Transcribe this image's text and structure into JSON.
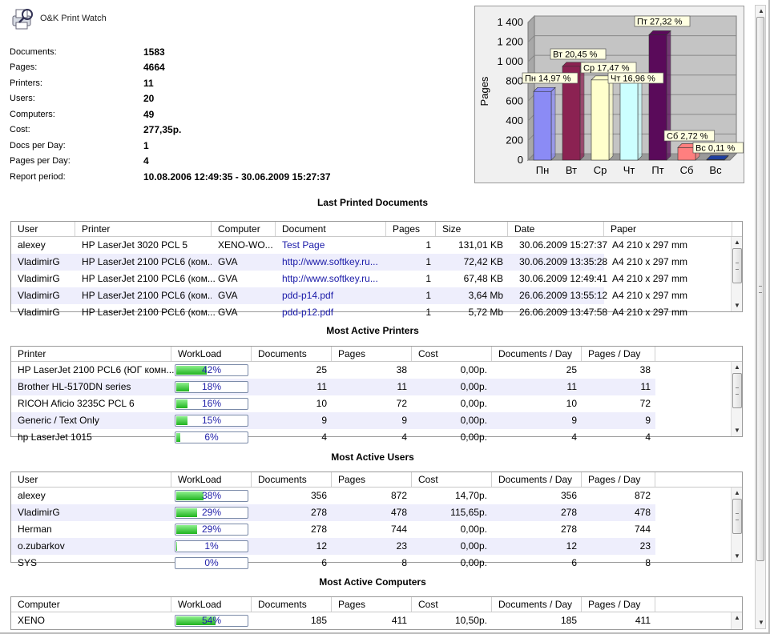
{
  "app": {
    "title": "O&K Print Watch"
  },
  "stats": [
    {
      "label": "Documents:",
      "value": "1583"
    },
    {
      "label": "Pages:",
      "value": "4664"
    },
    {
      "label": "Printers:",
      "value": "11"
    },
    {
      "label": "Users:",
      "value": "20"
    },
    {
      "label": "Computers:",
      "value": "49"
    },
    {
      "label": "Cost:",
      "value": "277,35р."
    },
    {
      "label": "Docs per Day:",
      "value": "1"
    },
    {
      "label": "Pages per Day:",
      "value": "4"
    },
    {
      "label": "Report period:",
      "value": "10.08.2006 12:49:35 - 30.06.2009 15:27:37"
    }
  ],
  "chart_data": {
    "type": "bar",
    "ylabel": "Pages",
    "xlabel": "",
    "title": "",
    "ylim": [
      0,
      1400
    ],
    "yticks": [
      0,
      200,
      400,
      600,
      800,
      1000,
      1200,
      1400
    ],
    "ytick_labels": [
      "0",
      "200",
      "400",
      "600",
      "800",
      "1 000",
      "1 200",
      "1 400"
    ],
    "categories": [
      "Пн",
      "Вт",
      "Ср",
      "Чт",
      "Пт",
      "Сб",
      "Вс"
    ],
    "values": [
      698,
      954,
      815,
      791,
      1274,
      127,
      5
    ],
    "data_labels": [
      "Пн 14,97 %",
      "Вт 20,45 %",
      "Ср 17,47 %",
      "Чт 16,96 %",
      "Пт 27,32 %",
      "Сб 2,72 %",
      "Вс 0,11 %"
    ],
    "colors": [
      "#8b8bf5",
      "#8b2252",
      "#ffffcc",
      "#ccffff",
      "#5a0a5a",
      "#ff7f7f",
      "#1f3f9f"
    ],
    "grid": true
  },
  "sections": {
    "docs": {
      "title": "Last Printed Documents",
      "columns": [
        "User",
        "Printer",
        "Computer",
        "Document",
        "Pages",
        "Size",
        "Date",
        "Paper"
      ],
      "rows": [
        [
          "alexey",
          "HP LaserJet 3020 PCL 5",
          "XENO-WO...",
          "Test Page",
          "1",
          "131,01 KB",
          "30.06.2009 15:27:37",
          "A4 210 x 297 mm"
        ],
        [
          "VladimirG",
          "HP LaserJet 2100 PCL6 (ком...",
          "GVA",
          "http://www.softkey.ru...",
          "1",
          "72,42 KB",
          "30.06.2009 13:35:28",
          "A4 210 x 297 mm"
        ],
        [
          "VladimirG",
          "HP LaserJet 2100 PCL6 (ком...",
          "GVA",
          "http://www.softkey.ru...",
          "1",
          "67,48 KB",
          "30.06.2009 12:49:41",
          "A4 210 x 297 mm"
        ],
        [
          "VladimirG",
          "HP LaserJet 2100 PCL6 (ком...",
          "GVA",
          "pdd-p14.pdf",
          "1",
          "3,64 Mb",
          "26.06.2009 13:55:12",
          "A4 210 x 297 mm"
        ],
        [
          "VladimirG",
          "HP LaserJet 2100 PCL6 (ком...",
          "GVA",
          "pdd-p12.pdf",
          "1",
          "5,72 Mb",
          "26.06.2009 13:47:58",
          "A4 210 x 297 mm"
        ]
      ]
    },
    "printers": {
      "title": "Most Active Printers",
      "columns": [
        "Printer",
        "WorkLoad",
        "Documents",
        "Pages",
        "Cost",
        "Documents / Day",
        "Pages / Day"
      ],
      "rows": [
        {
          "name": "HP LaserJet 2100 PCL6 (ЮГ комн...",
          "load": 42,
          "load_label": "42%",
          "docs": "25",
          "pages": "38",
          "cost": "0,00р.",
          "dpd": "25",
          "ppd": "38"
        },
        {
          "name": "Brother HL-5170DN series",
          "load": 18,
          "load_label": "18%",
          "docs": "11",
          "pages": "11",
          "cost": "0,00р.",
          "dpd": "11",
          "ppd": "11"
        },
        {
          "name": "RICOH Aficio 3235C PCL 6",
          "load": 16,
          "load_label": "16%",
          "docs": "10",
          "pages": "72",
          "cost": "0,00р.",
          "dpd": "10",
          "ppd": "72"
        },
        {
          "name": "Generic / Text Only",
          "load": 15,
          "load_label": "15%",
          "docs": "9",
          "pages": "9",
          "cost": "0,00р.",
          "dpd": "9",
          "ppd": "9"
        },
        {
          "name": "hp LaserJet 1015",
          "load": 6,
          "load_label": "6%",
          "docs": "4",
          "pages": "4",
          "cost": "0,00р.",
          "dpd": "4",
          "ppd": "4"
        }
      ]
    },
    "users": {
      "title": "Most Active Users",
      "columns": [
        "User",
        "WorkLoad",
        "Documents",
        "Pages",
        "Cost",
        "Documents / Day",
        "Pages / Day"
      ],
      "rows": [
        {
          "name": "alexey",
          "load": 38,
          "load_label": "38%",
          "docs": "356",
          "pages": "872",
          "cost": "14,70р.",
          "dpd": "356",
          "ppd": "872"
        },
        {
          "name": "VladimirG",
          "load": 29,
          "load_label": "29%",
          "docs": "278",
          "pages": "478",
          "cost": "115,65р.",
          "dpd": "278",
          "ppd": "478"
        },
        {
          "name": "Herman",
          "load": 29,
          "load_label": "29%",
          "docs": "278",
          "pages": "744",
          "cost": "0,00р.",
          "dpd": "278",
          "ppd": "744"
        },
        {
          "name": "o.zubarkov",
          "load": 1,
          "load_label": "1%",
          "docs": "12",
          "pages": "23",
          "cost": "0,00р.",
          "dpd": "12",
          "ppd": "23"
        },
        {
          "name": "SYS",
          "load": 0,
          "load_label": "0%",
          "docs": "6",
          "pages": "8",
          "cost": "0,00р.",
          "dpd": "6",
          "ppd": "8"
        }
      ]
    },
    "computers": {
      "title": "Most Active Computers",
      "columns": [
        "Computer",
        "WorkLoad",
        "Documents",
        "Pages",
        "Cost",
        "Documents / Day",
        "Pages / Day"
      ],
      "rows": [
        {
          "name": "XENO",
          "load": 54,
          "load_label": "54%",
          "docs": "185",
          "pages": "411",
          "cost": "10,50р.",
          "dpd": "185",
          "ppd": "411"
        }
      ]
    }
  }
}
